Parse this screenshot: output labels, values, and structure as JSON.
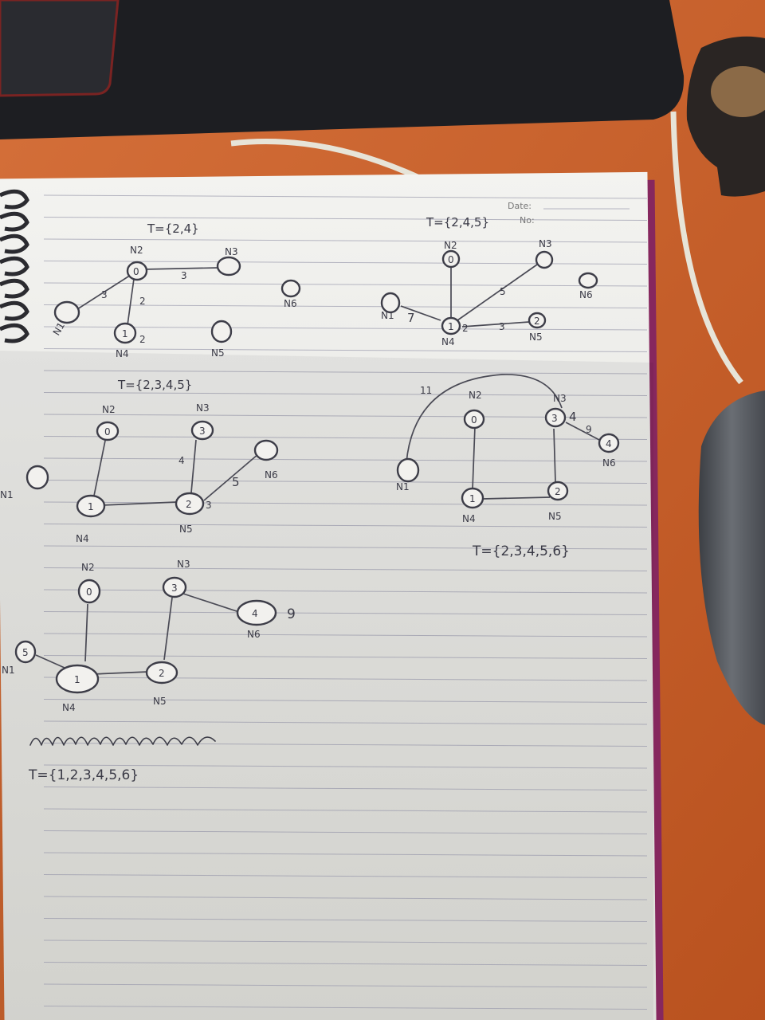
{
  "header": {
    "date_label": "Date:",
    "no_label": "No:"
  },
  "diagrams": [
    {
      "id": "d1",
      "title": "T={2,4}",
      "nodes": [
        {
          "id": "n1",
          "label": "N1",
          "value": ""
        },
        {
          "id": "n2",
          "label": "N2",
          "value": "0"
        },
        {
          "id": "n3",
          "label": "N3",
          "value": ""
        },
        {
          "id": "n4",
          "label": "N4",
          "value": "1"
        },
        {
          "id": "n5",
          "label": "N5",
          "value": ""
        },
        {
          "id": "n6",
          "label": "N6",
          "value": ""
        }
      ],
      "edges": [
        {
          "from": "n2",
          "to": "n1",
          "weight": "3"
        },
        {
          "from": "n2",
          "to": "n3",
          "weight": "3"
        },
        {
          "from": "n2",
          "to": "n4",
          "weight": "2"
        }
      ],
      "annotations": [
        "2"
      ]
    },
    {
      "id": "d2",
      "title": "T={2,4,5}",
      "nodes": [
        {
          "id": "n1",
          "label": "N1",
          "value": ""
        },
        {
          "id": "n2",
          "label": "N2",
          "value": "0"
        },
        {
          "id": "n3",
          "label": "N3",
          "value": ""
        },
        {
          "id": "n4",
          "label": "N4",
          "value": "1"
        },
        {
          "id": "n5",
          "label": "N5",
          "value": "2"
        },
        {
          "id": "n6",
          "label": "N6",
          "value": ""
        }
      ],
      "edges": [
        {
          "from": "n4",
          "to": "n1",
          "weight": "7"
        },
        {
          "from": "n4",
          "to": "n2",
          "weight": ""
        },
        {
          "from": "n4",
          "to": "n3",
          "weight": "5"
        },
        {
          "from": "n4",
          "to": "n5",
          "weight": "3"
        }
      ],
      "annotations": [
        "2"
      ]
    },
    {
      "id": "d3",
      "title": "T={2,3,4,5}",
      "nodes": [
        {
          "id": "n1",
          "label": "N1",
          "value": ""
        },
        {
          "id": "n2",
          "label": "N2",
          "value": "0"
        },
        {
          "id": "n3",
          "label": "N3",
          "value": "3"
        },
        {
          "id": "n4",
          "label": "N4",
          "value": "1"
        },
        {
          "id": "n5",
          "label": "N5",
          "value": "2"
        },
        {
          "id": "n6",
          "label": "N6",
          "value": ""
        }
      ],
      "edges": [
        {
          "from": "n2",
          "to": "n4",
          "weight": ""
        },
        {
          "from": "n4",
          "to": "n5",
          "weight": ""
        },
        {
          "from": "n5",
          "to": "n3",
          "weight": "4"
        },
        {
          "from": "n5",
          "to": "n6",
          "weight": "5"
        }
      ],
      "annotations": [
        "3"
      ]
    },
    {
      "id": "d4",
      "title": "T={2,3,4,5,6}",
      "nodes": [
        {
          "id": "n1",
          "label": "N1",
          "value": ""
        },
        {
          "id": "n2",
          "label": "N2",
          "value": "0"
        },
        {
          "id": "n3",
          "label": "N3",
          "value": "3"
        },
        {
          "id": "n4",
          "label": "N4",
          "value": "1"
        },
        {
          "id": "n5",
          "label": "N5",
          "value": "2"
        },
        {
          "id": "n6",
          "label": "N6",
          "value": "4"
        }
      ],
      "edges": [
        {
          "from": "n2",
          "to": "n4",
          "weight": ""
        },
        {
          "from": "n4",
          "to": "n5",
          "weight": ""
        },
        {
          "from": "n5",
          "to": "n3",
          "weight": ""
        },
        {
          "from": "n3",
          "to": "n6",
          "weight": "9"
        },
        {
          "from": "n3",
          "to": "n1",
          "weight": "11"
        }
      ],
      "annotations": [
        "4"
      ]
    },
    {
      "id": "d5",
      "title": "T={1,2,3,4,5,6}",
      "nodes": [
        {
          "id": "n1",
          "label": "N1",
          "value": "5"
        },
        {
          "id": "n2",
          "label": "N2",
          "value": "0"
        },
        {
          "id": "n3",
          "label": "N3",
          "value": "3"
        },
        {
          "id": "n4",
          "label": "N4",
          "value": "1"
        },
        {
          "id": "n5",
          "label": "N5",
          "value": "2"
        },
        {
          "id": "n6",
          "label": "N6",
          "value": "4"
        }
      ],
      "edges": [
        {
          "from": "n2",
          "to": "n4",
          "weight": ""
        },
        {
          "from": "n4",
          "to": "n5",
          "weight": ""
        },
        {
          "from": "n5",
          "to": "n3",
          "weight": ""
        },
        {
          "from": "n3",
          "to": "n6",
          "weight": ""
        },
        {
          "from": "n4",
          "to": "n1",
          "weight": ""
        }
      ],
      "annotations": [
        "9"
      ]
    }
  ]
}
